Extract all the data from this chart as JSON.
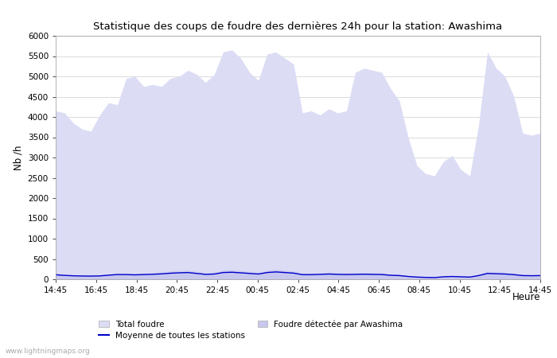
{
  "title": "Statistique des coups de foudre des dernières 24h pour la station: Awashima",
  "xlabel": "Heure",
  "ylabel": "Nb /h",
  "ylim": [
    0,
    6000
  ],
  "yticks": [
    0,
    500,
    1000,
    1500,
    2000,
    2500,
    3000,
    3500,
    4000,
    4500,
    5000,
    5500,
    6000
  ],
  "xtick_labels": [
    "14:45",
    "16:45",
    "18:45",
    "20:45",
    "22:45",
    "00:45",
    "02:45",
    "04:45",
    "06:45",
    "08:45",
    "10:45",
    "12:45",
    "14:45"
  ],
  "background_color": "#ffffff",
  "plot_bg_color": "#ffffff",
  "fill_color_total": "#dcdcf5",
  "fill_color_awashima": "#c8c8ee",
  "line_color_moyenne": "#0000cc",
  "watermark": "www.lightningmaps.org",
  "legend_total": "Total foudre",
  "legend_moyenne": "Moyenne de toutes les stations",
  "legend_awashima": "Foudre détectée par Awashima",
  "total_foudre": [
    4150,
    4100,
    3850,
    3700,
    3650,
    4050,
    4350,
    4300,
    4950,
    5000,
    4750,
    4800,
    4750,
    4950,
    5000,
    5150,
    5050,
    4850,
    5050,
    5600,
    5650,
    5450,
    5100,
    4900,
    5550,
    5600,
    5450,
    5300,
    4100,
    4150,
    4050,
    4200,
    4100,
    4150,
    5100,
    5200,
    5150,
    5100,
    4700,
    4400,
    3500,
    2800,
    2600,
    2550,
    2900,
    3050,
    2700,
    2550,
    3800,
    5600,
    5200,
    5000,
    4500,
    3600,
    3550,
    3600
  ],
  "awashima": [
    150,
    120,
    110,
    100,
    95,
    100,
    130,
    150,
    150,
    140,
    150,
    160,
    175,
    200,
    210,
    220,
    190,
    160,
    170,
    220,
    230,
    210,
    190,
    170,
    220,
    240,
    220,
    200,
    150,
    150,
    160,
    170,
    160,
    155,
    160,
    165,
    160,
    155,
    130,
    120,
    90,
    70,
    60,
    55,
    80,
    90,
    80,
    70,
    120,
    190,
    180,
    170,
    150,
    120,
    115,
    120
  ],
  "moyenne": [
    110,
    95,
    85,
    80,
    78,
    82,
    100,
    115,
    115,
    108,
    115,
    122,
    132,
    148,
    158,
    165,
    143,
    120,
    128,
    165,
    172,
    158,
    143,
    128,
    165,
    180,
    165,
    150,
    113,
    113,
    120,
    128,
    120,
    116,
    120,
    124,
    120,
    116,
    98,
    90,
    68,
    53,
    45,
    41,
    60,
    68,
    60,
    53,
    90,
    143,
    135,
    128,
    113,
    90,
    86,
    90
  ]
}
